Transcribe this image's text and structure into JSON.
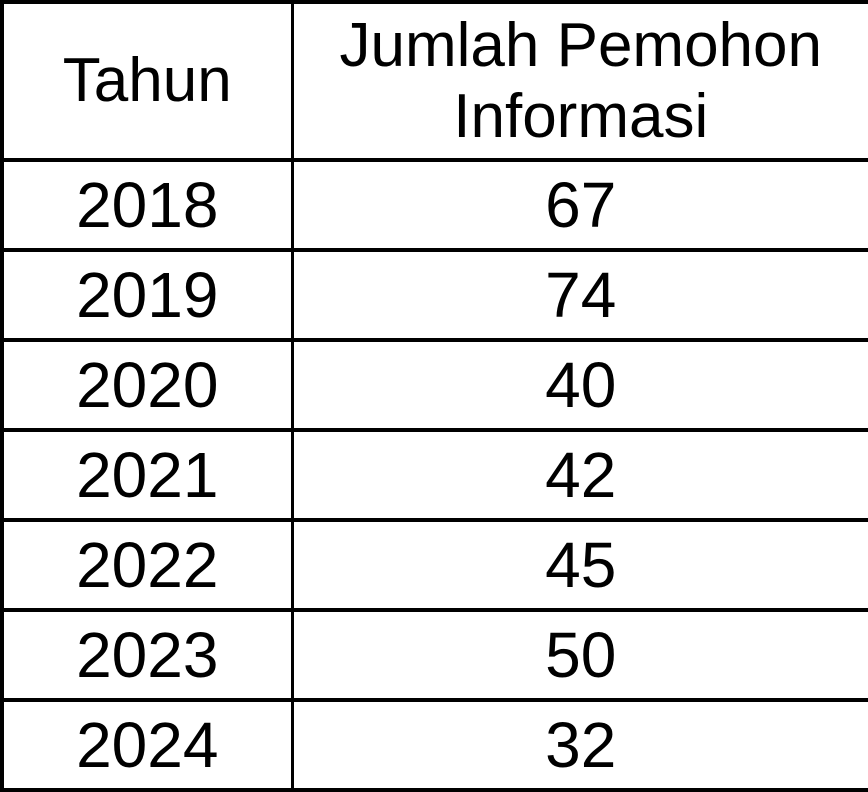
{
  "colors": {
    "border": "#000000",
    "text": "#000000",
    "background": "#ffffff"
  },
  "table": {
    "columns": [
      {
        "label": "Tahun"
      },
      {
        "label": "Jumlah Pemohon Informasi"
      }
    ],
    "rows": [
      {
        "tahun": "2018",
        "jumlah": "67"
      },
      {
        "tahun": "2019",
        "jumlah": "74"
      },
      {
        "tahun": "2020",
        "jumlah": "40"
      },
      {
        "tahun": "2021",
        "jumlah": "42"
      },
      {
        "tahun": "2022",
        "jumlah": "45"
      },
      {
        "tahun": "2023",
        "jumlah": "50"
      },
      {
        "tahun": "2024",
        "jumlah": "32"
      }
    ]
  },
  "chart_data": {
    "type": "table",
    "title": "",
    "columns": [
      "Tahun",
      "Jumlah Pemohon Informasi"
    ],
    "categories": [
      "2018",
      "2019",
      "2020",
      "2021",
      "2022",
      "2023",
      "2024"
    ],
    "values": [
      67,
      74,
      40,
      42,
      45,
      50,
      32
    ],
    "xlabel": "Tahun",
    "ylabel": "Jumlah Pemohon Informasi"
  }
}
